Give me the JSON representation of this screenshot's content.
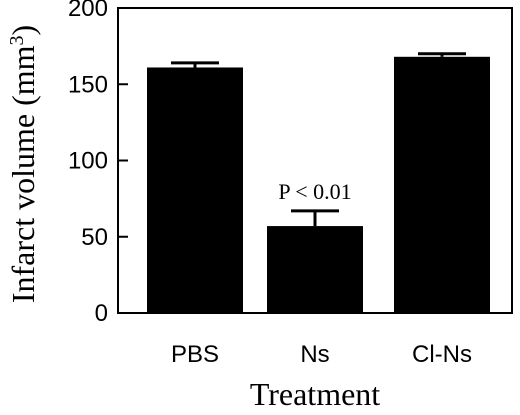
{
  "chart_data": {
    "type": "bar",
    "title": "",
    "categories": [
      "PBS",
      "Ns",
      "Cl-Ns"
    ],
    "values": [
      161,
      57,
      168
    ],
    "errors": [
      3,
      10,
      2
    ],
    "xlabel": "Treatment",
    "ylabel": "Infarct volume (mm",
    "ylabel_superscript": "3",
    "ylabel_suffix": ")",
    "ylim": [
      0,
      200
    ],
    "yticks": [
      0,
      50,
      100,
      150,
      200
    ],
    "grid": false,
    "annotations": [
      {
        "category": "Ns",
        "text": "P < 0.01"
      }
    ],
    "colors": {
      "bar": "#000000",
      "axis": "#000000"
    }
  }
}
